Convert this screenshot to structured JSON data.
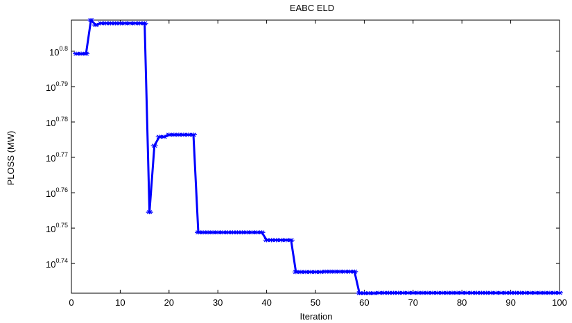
{
  "chart_data": {
    "type": "line",
    "title": "EABC ELD",
    "xlabel": "Iteration",
    "ylabel": "PLOSS (MW)",
    "xlim": [
      0,
      100
    ],
    "xticks": [
      0,
      10,
      20,
      30,
      40,
      50,
      60,
      70,
      80,
      90,
      100
    ],
    "ylim": [
      0.7316,
      0.8088
    ],
    "yscale": "log10",
    "yticks": [
      0.74,
      0.75,
      0.76,
      0.77,
      0.78,
      0.79,
      0.8
    ],
    "ytick_labels": [
      {
        "base": "10",
        "exp": "0.74"
      },
      {
        "base": "10",
        "exp": "0.75"
      },
      {
        "base": "10",
        "exp": "0.76"
      },
      {
        "base": "10",
        "exp": "0.77"
      },
      {
        "base": "10",
        "exp": "0.78"
      },
      {
        "base": "10",
        "exp": "0.79"
      },
      {
        "base": "10",
        "exp": "0.8"
      }
    ],
    "grid": false,
    "series": [
      {
        "color": "#0000ff",
        "marker": "star",
        "x": [
          1,
          2,
          3,
          4,
          5,
          6,
          7,
          8,
          9,
          10,
          11,
          12,
          13,
          14,
          15,
          16,
          17,
          18,
          19,
          20,
          21,
          22,
          23,
          24,
          25,
          26,
          27,
          28,
          29,
          30,
          31,
          32,
          33,
          34,
          35,
          36,
          37,
          38,
          39,
          40,
          41,
          42,
          43,
          44,
          45,
          46,
          47,
          48,
          49,
          50,
          51,
          52,
          53,
          54,
          55,
          56,
          57,
          58,
          59,
          60,
          61,
          62,
          63,
          64,
          65,
          66,
          67,
          68,
          69,
          70,
          71,
          72,
          73,
          74,
          75,
          76,
          77,
          78,
          79,
          80,
          81,
          82,
          83,
          84,
          85,
          86,
          87,
          88,
          89,
          90,
          91,
          92,
          93,
          94,
          95,
          96,
          97,
          98,
          99,
          100
        ],
        "y": [
          0.7993,
          0.7993,
          0.7993,
          0.8088,
          0.8074,
          0.8079,
          0.8079,
          0.8079,
          0.8079,
          0.8079,
          0.8079,
          0.8079,
          0.8079,
          0.8079,
          0.8079,
          0.7545,
          0.7733,
          0.7758,
          0.7758,
          0.7764,
          0.7764,
          0.7764,
          0.7764,
          0.7764,
          0.7764,
          0.7488,
          0.7488,
          0.7488,
          0.7488,
          0.7488,
          0.7488,
          0.7488,
          0.7488,
          0.7488,
          0.7488,
          0.7488,
          0.7488,
          0.7488,
          0.7488,
          0.7466,
          0.7466,
          0.7466,
          0.7466,
          0.7466,
          0.7466,
          0.7376,
          0.7376,
          0.7376,
          0.7376,
          0.7376,
          0.7376,
          0.7377,
          0.7377,
          0.7377,
          0.7377,
          0.7377,
          0.7377,
          0.7377,
          0.7316,
          0.7316,
          0.7316,
          0.7316,
          0.7317,
          0.7317,
          0.7317,
          0.7317,
          0.7317,
          0.7317,
          0.7317,
          0.7317,
          0.7317,
          0.7317,
          0.7317,
          0.7317,
          0.7317,
          0.7317,
          0.7317,
          0.7317,
          0.7317,
          0.7317,
          0.7317,
          0.7317,
          0.7317,
          0.7317,
          0.7317,
          0.7317,
          0.7317,
          0.7317,
          0.7317,
          0.7317,
          0.7317,
          0.7317,
          0.7317,
          0.7317,
          0.7317,
          0.7317,
          0.7317,
          0.7317,
          0.7317,
          0.7317
        ]
      }
    ]
  }
}
